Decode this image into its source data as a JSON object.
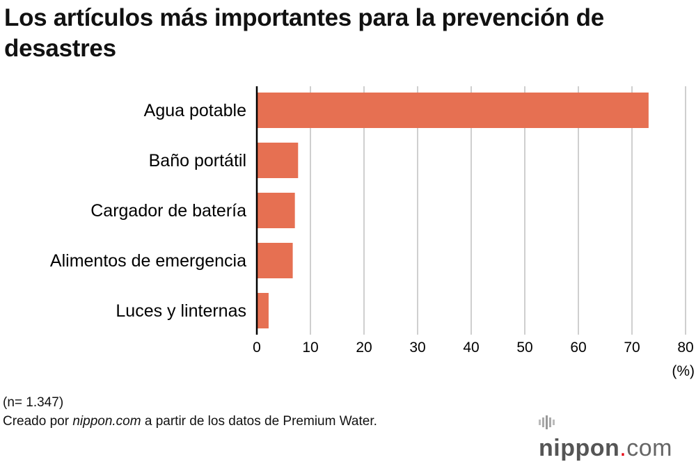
{
  "title": "Los artículos más importantes para la prevención de desastres",
  "chart_data": {
    "type": "bar",
    "orientation": "horizontal",
    "title": "Los artículos más importantes para la prevención de desastres",
    "categories": [
      "Agua potable",
      "Baño portátil",
      "Cargador de batería",
      "Alimentos de emergencia",
      "Luces y linternas"
    ],
    "values": [
      73.1,
      7.7,
      7.1,
      6.7,
      2.2
    ],
    "xlim": [
      0,
      80
    ],
    "xticks": [
      "0",
      "10",
      "20",
      "30",
      "40",
      "50",
      "60",
      "70",
      "80"
    ],
    "xlabel": "(%)",
    "ylabel": "",
    "grid": true,
    "bar_color": "#e67052"
  },
  "footer": {
    "sample": "(n= 1.347)",
    "credit_prefix": "Creado por ",
    "credit_site": "nippon.com",
    "credit_suffix": " a partir de los datos de Premium Water."
  },
  "logo": {
    "name": "nippon",
    "dot": ".",
    "tld": "com"
  }
}
